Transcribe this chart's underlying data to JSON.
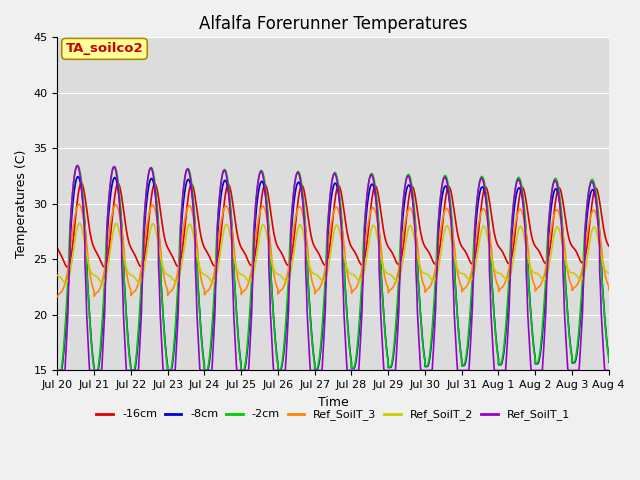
{
  "title": "Alfalfa Forerunner Temperatures",
  "xlabel": "Time",
  "ylabel": "Temperatures (C)",
  "ylim": [
    15,
    45
  ],
  "annotation": "TA_soilco2",
  "annotation_color": "#cc0000",
  "annotation_bg": "#ffff99",
  "annotation_edge": "#aa8800",
  "plot_bg": "#dcdcdc",
  "fig_bg": "#f0f0f0",
  "series_names": [
    "-16cm",
    "-8cm",
    "-2cm",
    "Ref_SoilT_3",
    "Ref_SoilT_2",
    "Ref_SoilT_1"
  ],
  "series_colors": [
    "#dd0000",
    "#0000cc",
    "#00cc00",
    "#ff8800",
    "#cccc00",
    "#9900cc"
  ],
  "xtick_labels": [
    "Jul 20",
    "Jul 21",
    "Jul 22",
    "Jul 23",
    "Jul 24",
    "Jul 25",
    "Jul 26",
    "Jul 27",
    "Jul 28",
    "Jul 29",
    "Jul 30",
    "Jul 31",
    "Aug 1",
    "Aug 2",
    "Aug 3",
    "Aug 4"
  ],
  "ytick_labels": [
    15,
    20,
    25,
    30,
    35,
    40,
    45
  ],
  "lw": 1.2,
  "title_fontsize": 12,
  "label_fontsize": 9,
  "tick_fontsize": 8,
  "legend_fontsize": 8
}
